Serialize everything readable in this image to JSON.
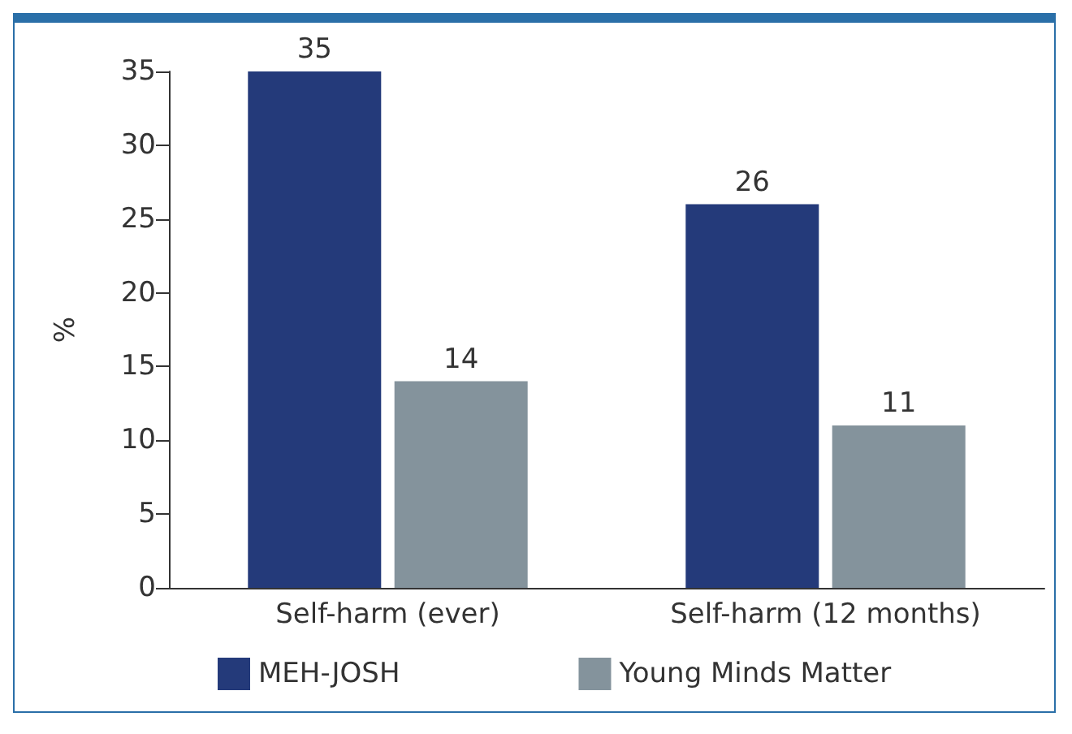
{
  "chart_data": {
    "type": "bar",
    "categories": [
      "Self-harm (ever)",
      "Self-harm (12 months)"
    ],
    "ylabel": "%",
    "ylim": [
      0,
      35
    ],
    "yticks": [
      0,
      5,
      10,
      15,
      20,
      25,
      30,
      35
    ],
    "series": [
      {
        "name": "MEH-JOSH",
        "color": "#243a7a",
        "values": [
          35,
          26
        ]
      },
      {
        "name": "Young Minds Matter",
        "color": "#84939c",
        "values": [
          14,
          11
        ]
      }
    ],
    "data_labels": true,
    "grid": false,
    "legend": "bottom"
  }
}
